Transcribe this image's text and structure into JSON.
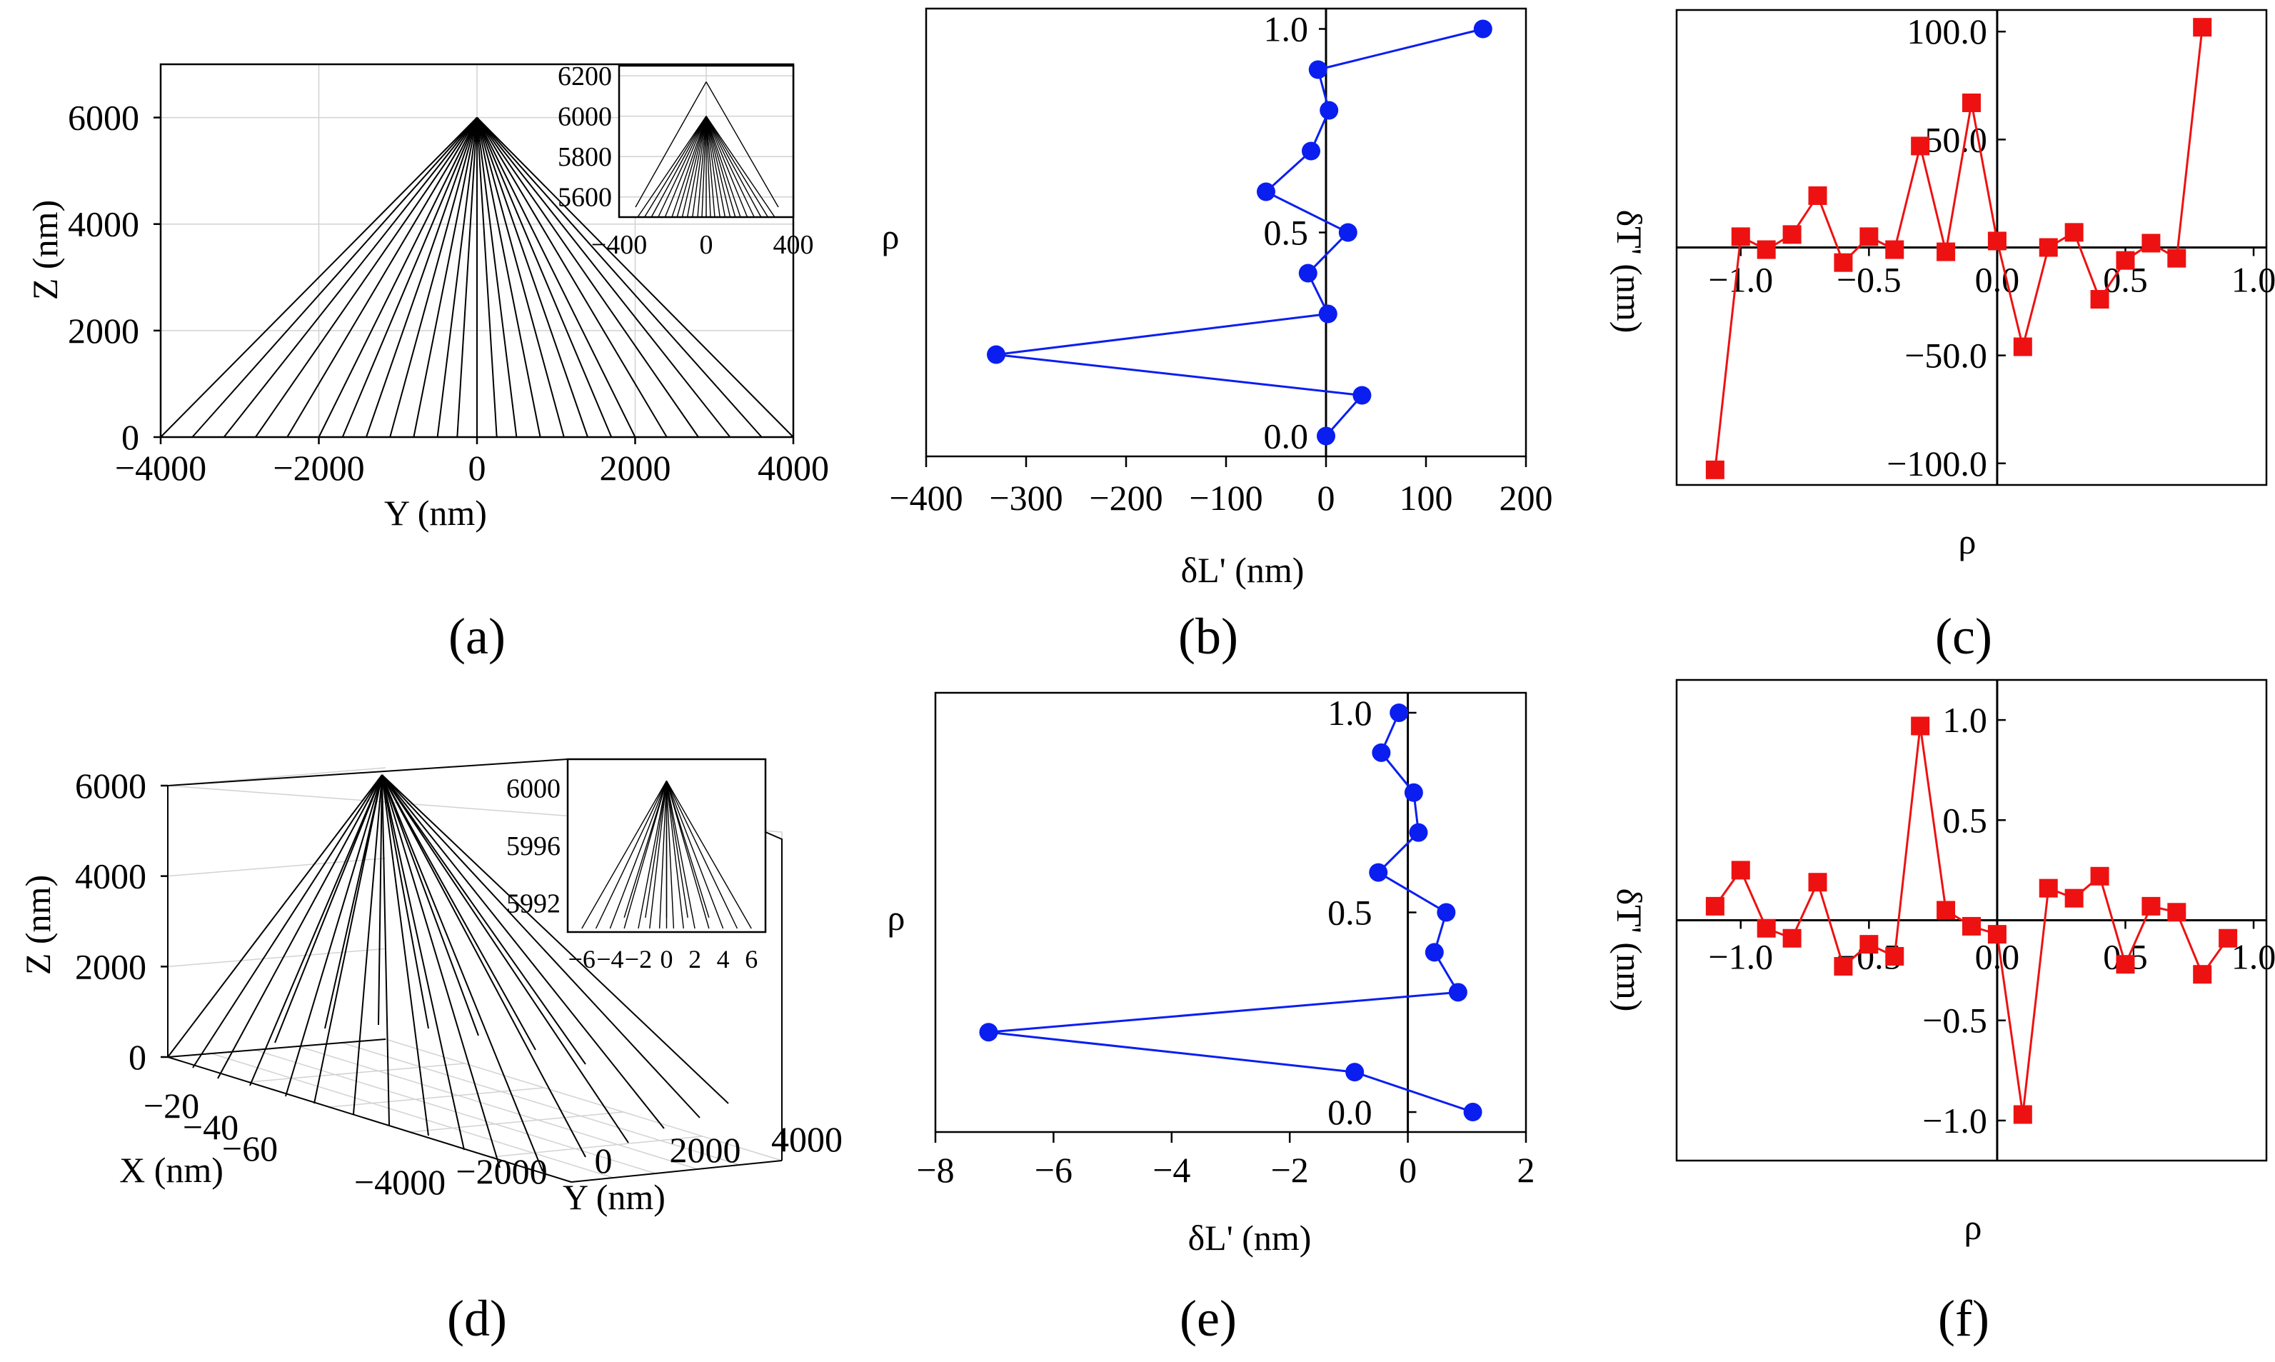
{
  "colors": {
    "blue": "#0a1ef0",
    "red": "#ee1111",
    "black": "#000000"
  },
  "panel_labels": [
    "(a)",
    "(b)",
    "(c)",
    "(d)",
    "(e)",
    "(f)"
  ],
  "chart_data": [
    {
      "id": "a",
      "type": "line",
      "title": "",
      "xlabel": "Y  (nm)",
      "ylabel": "Z  (nm)",
      "xlim": [
        -4000,
        4000
      ],
      "ylim": [
        0,
        7000
      ],
      "xticks": [
        "-4000",
        "-2000",
        "0",
        "2000",
        "4000"
      ],
      "yticks": [
        "0",
        "2000",
        "4000",
        "6000"
      ],
      "apex": {
        "y": 0,
        "z": 6000
      },
      "ray_base_y": [
        -4000,
        -3600,
        -3200,
        -2800,
        -2400,
        -2000,
        -1700,
        -1400,
        -1100,
        -800,
        -500,
        -250,
        0,
        250,
        500,
        800,
        1100,
        1400,
        1700,
        2000,
        2400,
        2800,
        3200,
        3600,
        4000
      ],
      "inset": {
        "xlim": [
          -400,
          400
        ],
        "ylim": [
          5500,
          6250
        ],
        "xticks": [
          "-400",
          "0",
          "400"
        ],
        "yticks": [
          "5600",
          "5800",
          "6000",
          "6200"
        ]
      }
    },
    {
      "id": "b",
      "type": "line",
      "xlabel": "δL' (nm)",
      "ylabel": "ρ",
      "xlim": [
        -400,
        200
      ],
      "ylim": [
        -0.05,
        1.05
      ],
      "xticks": [
        "−400",
        "−300",
        "−200",
        "−100",
        "0",
        "100",
        "200"
      ],
      "yticks": [
        "0.0",
        "0.5",
        "1.0"
      ],
      "series": [
        {
          "name": "δL'",
          "color": "#0a1ef0",
          "marker": "circle",
          "points": [
            [
              0,
              0.0
            ],
            [
              36,
              0.1
            ],
            [
              -330,
              0.2
            ],
            [
              2,
              0.3
            ],
            [
              -18,
              0.4
            ],
            [
              22,
              0.5
            ],
            [
              -60,
              0.6
            ],
            [
              -15,
              0.7
            ],
            [
              3,
              0.8
            ],
            [
              -8,
              0.9
            ],
            [
              157,
              1.0
            ]
          ]
        }
      ]
    },
    {
      "id": "c",
      "type": "line",
      "xlabel": "ρ",
      "ylabel": "δT' (nm)",
      "xlim": [
        -1.25,
        1.05
      ],
      "ylim": [
        -110,
        110
      ],
      "xticks": [
        "−1.0",
        "−0.5",
        "0.0",
        "0.5",
        "1.0"
      ],
      "yticks": [
        "−100.0",
        "−50.0",
        "50.0",
        "100.0"
      ],
      "series": [
        {
          "name": "δT'",
          "color": "#ee1111",
          "marker": "square",
          "points": [
            [
              -1.1,
              -103
            ],
            [
              -1.0,
              5
            ],
            [
              -0.9,
              -1
            ],
            [
              -0.8,
              6
            ],
            [
              -0.7,
              24
            ],
            [
              -0.6,
              -7
            ],
            [
              -0.5,
              5
            ],
            [
              -0.4,
              -1
            ],
            [
              -0.3,
              47
            ],
            [
              -0.2,
              -2
            ],
            [
              -0.1,
              67
            ],
            [
              0.0,
              3
            ],
            [
              0.1,
              -46
            ],
            [
              0.2,
              0
            ],
            [
              0.3,
              7
            ],
            [
              0.4,
              -24
            ],
            [
              0.5,
              -6
            ],
            [
              0.6,
              2
            ],
            [
              0.7,
              -5
            ],
            [
              0.8,
              102
            ]
          ]
        }
      ]
    },
    {
      "id": "d",
      "type": "line",
      "xlabel": "Y  (nm)",
      "ylabel": "Z  (nm)",
      "zlabel": "X  (nm)",
      "yticks": [
        "0",
        "2000",
        "4000",
        "6000"
      ],
      "xticks": [
        "−4000",
        "−2000",
        "0",
        "2000",
        "4000"
      ],
      "x3ticks": [
        "−20",
        "−40",
        "−60"
      ],
      "inset": {
        "xlim": [
          -7,
          7
        ],
        "ylim": [
          5990,
          6002
        ],
        "xticks": [
          "-6",
          "-4",
          "-2",
          "0",
          "2",
          "4",
          "6"
        ],
        "yticks": [
          "5992",
          "5996",
          "6000"
        ]
      }
    },
    {
      "id": "e",
      "type": "line",
      "xlabel": "δL' (nm)",
      "ylabel": "ρ",
      "xlim": [
        -8,
        2
      ],
      "ylim": [
        -0.05,
        1.05
      ],
      "xticks": [
        "−8",
        "−6",
        "−4",
        "−2",
        "0",
        "2"
      ],
      "yticks": [
        "0.0",
        "0.5",
        "1.0"
      ],
      "series": [
        {
          "name": "δL'",
          "color": "#0a1ef0",
          "marker": "circle",
          "points": [
            [
              1.1,
              0.0
            ],
            [
              -0.9,
              0.1
            ],
            [
              -7.1,
              0.2
            ],
            [
              0.85,
              0.3
            ],
            [
              0.45,
              0.4
            ],
            [
              0.65,
              0.5
            ],
            [
              -0.5,
              0.6
            ],
            [
              0.18,
              0.7
            ],
            [
              0.1,
              0.8
            ],
            [
              -0.45,
              0.9
            ],
            [
              -0.15,
              1.0
            ]
          ]
        }
      ]
    },
    {
      "id": "f",
      "type": "line",
      "xlabel": "ρ",
      "ylabel": "δT' (nm)",
      "xlim": [
        -1.25,
        1.05
      ],
      "ylim": [
        -1.2,
        1.2
      ],
      "xticks": [
        "−1.0",
        "−0.5",
        "0.0",
        "0.5",
        "1.0"
      ],
      "yticks": [
        "−1.0",
        "−0.5",
        "0.5",
        "1.0"
      ],
      "series": [
        {
          "name": "δT'",
          "color": "#ee1111",
          "marker": "square",
          "points": [
            [
              -1.1,
              0.07
            ],
            [
              -1.0,
              0.25
            ],
            [
              -0.9,
              -0.04
            ],
            [
              -0.8,
              -0.09
            ],
            [
              -0.7,
              0.19
            ],
            [
              -0.6,
              -0.23
            ],
            [
              -0.5,
              -0.12
            ],
            [
              -0.4,
              -0.18
            ],
            [
              -0.3,
              0.97
            ],
            [
              -0.2,
              0.05
            ],
            [
              -0.1,
              -0.03
            ],
            [
              0.0,
              -0.07
            ],
            [
              0.1,
              -0.97
            ],
            [
              0.2,
              0.16
            ],
            [
              0.3,
              0.11
            ],
            [
              0.4,
              0.22
            ],
            [
              0.5,
              -0.22
            ],
            [
              0.6,
              0.07
            ],
            [
              0.7,
              0.04
            ],
            [
              0.8,
              -0.27
            ],
            [
              0.9,
              -0.09
            ]
          ]
        }
      ]
    }
  ]
}
